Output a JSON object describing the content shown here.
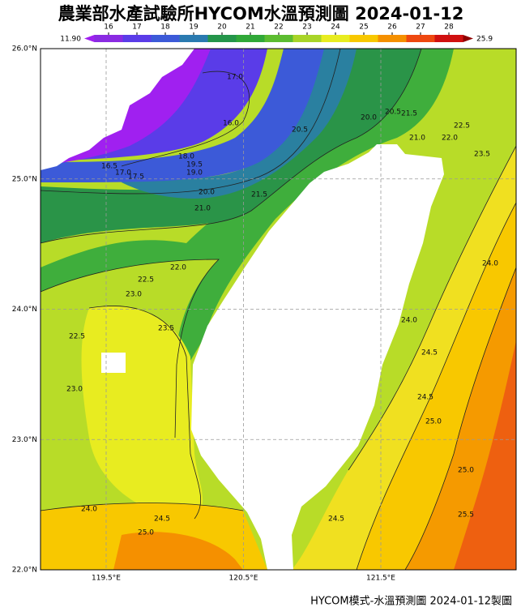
{
  "header": {
    "title": "農業部水產試驗所HYCOM水溫預測圖 2024-01-12"
  },
  "colorbar": {
    "min": {
      "value": 11.9,
      "label": "11.90"
    },
    "max": 25.9,
    "ticks": [
      16,
      17,
      18,
      19,
      20,
      21,
      22,
      23,
      24,
      25,
      26,
      27,
      28
    ],
    "colors": [
      "#8a2be2",
      "#5a3ce8",
      "#3c5ad8",
      "#2a7ab0",
      "#24954a",
      "#30a838",
      "#5cbc30",
      "#a8d428",
      "#e8ec20",
      "#f8c800",
      "#f59000",
      "#ee4810",
      "#d01010"
    ]
  },
  "axes": {
    "lat_ticks": [
      {
        "value": 26,
        "label": "26.0°N"
      },
      {
        "value": 25,
        "label": "25.0°N"
      },
      {
        "value": 24,
        "label": "24.0°N"
      },
      {
        "value": 23,
        "label": "23.0°N"
      },
      {
        "value": 22,
        "label": "22.0°N"
      }
    ],
    "lon_ticks": [
      {
        "value": 119.5,
        "label": "119.5°E"
      },
      {
        "value": 120.5,
        "label": "120.5°E"
      },
      {
        "value": 121.5,
        "label": "121.5°E"
      }
    ]
  },
  "contour_labels": [
    "17.0",
    "16.0",
    "16.5",
    "17.0",
    "17.5",
    "18.0",
    "19.5",
    "19.0",
    "20.0",
    "21.0",
    "21.5",
    "20.5",
    "20.0",
    "20.5",
    "21.5",
    "21.0",
    "22.0",
    "22.5",
    "23.5",
    "22.0",
    "22.5",
    "23.0",
    "23.5",
    "22.5",
    "23.0",
    "24.0",
    "24.0",
    "24.5",
    "24.5",
    "25.0",
    "25.0",
    "25.5",
    "24.0",
    "24.5",
    "25.0",
    "24.5"
  ],
  "footer": "HYCOM模式-水溫預測圖 2024-01-12製圖"
}
